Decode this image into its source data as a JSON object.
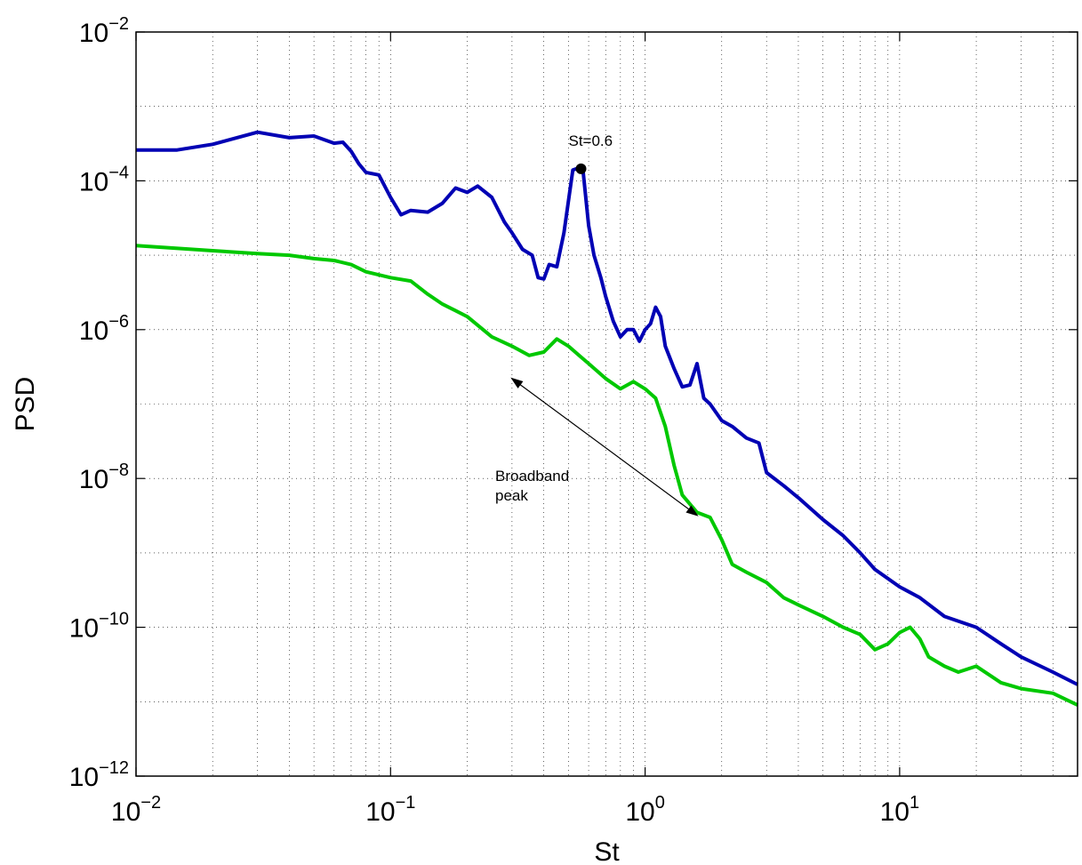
{
  "chart_data": {
    "type": "line",
    "xscale": "log",
    "yscale": "log",
    "xlim": [
      0.01,
      50
    ],
    "ylim": [
      1e-12,
      0.01
    ],
    "grid": true,
    "xlabel": "St",
    "ylabel": "PSD",
    "x_ticks": [
      {
        "value": 0.01,
        "base": "10",
        "exp": "−2"
      },
      {
        "value": 0.1,
        "base": "10",
        "exp": "−1"
      },
      {
        "value": 1,
        "base": "10",
        "exp": "0"
      },
      {
        "value": 10,
        "base": "10",
        "exp": "1"
      }
    ],
    "y_ticks": [
      {
        "value": 1e-12,
        "base": "10",
        "exp": "−12"
      },
      {
        "value": 1e-10,
        "base": "10",
        "exp": "−10"
      },
      {
        "value": 1e-08,
        "base": "10",
        "exp": "−8"
      },
      {
        "value": 1e-06,
        "base": "10",
        "exp": "−6"
      },
      {
        "value": 0.0001,
        "base": "10",
        "exp": "−4"
      },
      {
        "value": 0.01,
        "base": "10",
        "exp": "−2"
      }
    ],
    "series": [
      {
        "color": "#0000b4",
        "x": [
          0.01,
          0.0145,
          0.02,
          0.03,
          0.04,
          0.05,
          0.06,
          0.065,
          0.07,
          0.075,
          0.08,
          0.09,
          0.1,
          0.11,
          0.12,
          0.14,
          0.16,
          0.18,
          0.2,
          0.22,
          0.25,
          0.28,
          0.3,
          0.33,
          0.36,
          0.38,
          0.4,
          0.42,
          0.45,
          0.48,
          0.52,
          0.55,
          0.57,
          0.6,
          0.63,
          0.67,
          0.7,
          0.75,
          0.8,
          0.85,
          0.9,
          0.95,
          1.0,
          1.05,
          1.1,
          1.15,
          1.2,
          1.3,
          1.4,
          1.5,
          1.6,
          1.7,
          1.8,
          2.0,
          2.2,
          2.5,
          2.8,
          3.0,
          3.5,
          4.0,
          5.0,
          6.0,
          7.0,
          8.0,
          10.0,
          12.0,
          15.0,
          20.0,
          25.0,
          30.0,
          40.0,
          50.0
        ],
        "y": [
          0.00026,
          0.00026,
          0.00031,
          0.00045,
          0.00038,
          0.0004,
          0.00032,
          0.00033,
          0.00025,
          0.00017,
          0.00013,
          0.00012,
          6e-05,
          3.5e-05,
          4e-05,
          3.8e-05,
          5e-05,
          8e-05,
          7e-05,
          8.5e-05,
          6e-05,
          2.8e-05,
          2e-05,
          1.2e-05,
          1e-05,
          5e-06,
          4.8e-06,
          7.5e-06,
          7e-06,
          2e-05,
          0.00014,
          0.00015,
          0.00014,
          2.5e-05,
          1e-05,
          5e-06,
          2.8e-06,
          1.3e-06,
          8e-07,
          1e-06,
          1e-06,
          7e-07,
          1e-06,
          1.2e-06,
          2e-06,
          1.5e-06,
          6e-07,
          3e-07,
          1.7e-07,
          1.8e-07,
          3.5e-07,
          1.2e-07,
          1e-07,
          6e-08,
          5e-08,
          3.5e-08,
          3e-08,
          1.2e-08,
          8e-09,
          5.5e-09,
          2.8e-09,
          1.7e-09,
          1e-09,
          6e-10,
          3.5e-10,
          2.5e-10,
          1.4e-10,
          1e-10,
          6e-11,
          4e-11,
          2.5e-11,
          1.7e-11
        ]
      },
      {
        "color": "#00c800",
        "x": [
          0.01,
          0.02,
          0.03,
          0.04,
          0.05,
          0.06,
          0.07,
          0.08,
          0.1,
          0.12,
          0.14,
          0.16,
          0.18,
          0.2,
          0.25,
          0.3,
          0.35,
          0.4,
          0.45,
          0.5,
          0.55,
          0.6,
          0.7,
          0.8,
          0.9,
          1.0,
          1.1,
          1.2,
          1.3,
          1.4,
          1.6,
          1.8,
          2.0,
          2.2,
          2.5,
          3.0,
          3.5,
          4.0,
          5.0,
          6.0,
          7.0,
          8.0,
          9.0,
          10.0,
          11.0,
          12.0,
          13.0,
          15.0,
          17.0,
          20.0,
          25.0,
          30.0,
          40.0,
          50.0
        ],
        "y": [
          1.35e-05,
          1.15e-05,
          1.05e-05,
          1e-05,
          9e-06,
          8.5e-06,
          7.5e-06,
          6e-06,
          5e-06,
          4.5e-06,
          3e-06,
          2.2e-06,
          1.8e-06,
          1.5e-06,
          8e-07,
          6e-07,
          4.5e-07,
          5e-07,
          7.5e-07,
          6e-07,
          4.5e-07,
          3.5e-07,
          2.2e-07,
          1.6e-07,
          2e-07,
          1.6e-07,
          1.2e-07,
          5e-08,
          1.5e-08,
          6e-09,
          3.5e-09,
          3e-09,
          1.5e-09,
          7e-10,
          5.5e-10,
          4e-10,
          2.5e-10,
          2e-10,
          1.4e-10,
          1e-10,
          8e-11,
          5e-11,
          6e-11,
          8.5e-11,
          1e-10,
          7e-11,
          4e-11,
          3e-11,
          2.5e-11,
          3e-11,
          1.8e-11,
          1.5e-11,
          1.3e-11,
          9e-12
        ]
      }
    ],
    "marker": {
      "x": 0.56,
      "y": 0.000145,
      "label": "St=0.6"
    },
    "arrow_annotation": {
      "text_lines": [
        "Broadband",
        "peak"
      ],
      "from": {
        "x": 0.3,
        "y": 2.2e-07
      },
      "to": {
        "x": 1.6,
        "y": 3.2e-09
      }
    }
  }
}
